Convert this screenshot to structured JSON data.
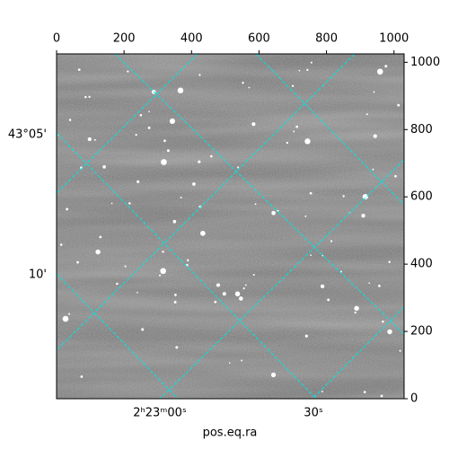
{
  "chart_data": {
    "type": "image",
    "xlabel": "pos.eq.ra",
    "xlim": [
      0,
      1030
    ],
    "xticks": [
      0,
      200,
      400,
      600,
      800,
      1000
    ],
    "ylim": [
      0,
      1025
    ],
    "yticks": [
      0,
      200,
      400,
      600,
      800,
      1000
    ],
    "ra_tick_labels": [
      "2ʰ23ᵐ00ˢ",
      "30ˢ"
    ],
    "dec_tick_labels": [
      "43°05'",
      "10'"
    ],
    "grid_color": "#00e5e5"
  }
}
